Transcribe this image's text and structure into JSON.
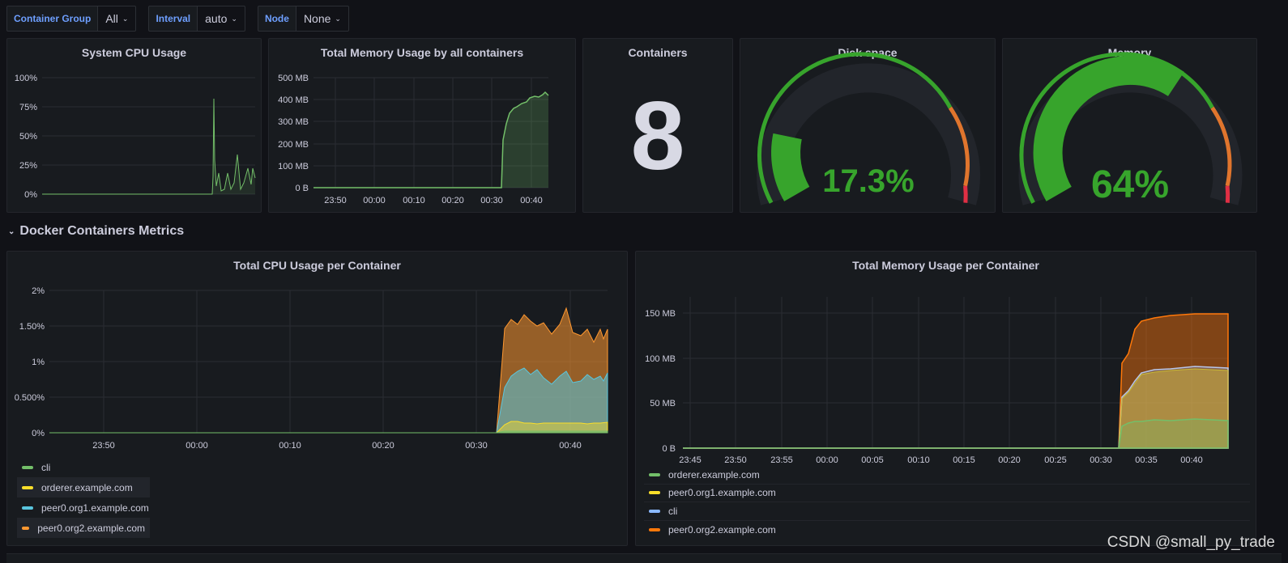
{
  "variables": [
    {
      "label": "Container Group",
      "value": "All"
    },
    {
      "label": "Interval",
      "value": "auto"
    },
    {
      "label": "Node",
      "value": "None"
    }
  ],
  "panels": {
    "cpu": {
      "title": "System CPU Usage",
      "y_ticks": [
        "100%",
        "75%",
        "50%",
        "25%",
        "0%"
      ]
    },
    "mem_total": {
      "title": "Total Memory Usage by all containers",
      "y_ticks": [
        "500 MB",
        "400 MB",
        "300 MB",
        "200 MB",
        "100 MB",
        "0 B"
      ],
      "x_ticks": [
        "23:50",
        "00:00",
        "00:10",
        "00:20",
        "00:30",
        "00:40"
      ]
    },
    "containers": {
      "title": "Containers",
      "value": "8"
    },
    "disk": {
      "title": "Disk space",
      "value": "17.3%",
      "fraction": 0.173
    },
    "memory": {
      "title": "Memory",
      "value": "64%",
      "fraction": 0.64
    }
  },
  "row": {
    "title": "Docker Containers Metrics"
  },
  "cpu_per_container": {
    "title": "Total CPU Usage per Container",
    "y_ticks": [
      "2%",
      "1.50%",
      "1%",
      "0.500%",
      "0%"
    ],
    "x_ticks": [
      "23:50",
      "00:00",
      "00:10",
      "00:20",
      "00:30",
      "00:40"
    ],
    "legend": [
      {
        "name": "cli",
        "color": "#73bf69"
      },
      {
        "name": "orderer.example.com",
        "color": "#fade2a"
      },
      {
        "name": "peer0.org1.example.com",
        "color": "#5ac6de"
      },
      {
        "name": "peer0.org2.example.com",
        "color": "#ff9830"
      }
    ]
  },
  "mem_per_container": {
    "title": "Total Memory Usage per Container",
    "y_ticks": [
      "150 MB",
      "100 MB",
      "50 MB",
      "0 B"
    ],
    "x_ticks": [
      "23:45",
      "23:50",
      "23:55",
      "00:00",
      "00:05",
      "00:10",
      "00:15",
      "00:20",
      "00:25",
      "00:30",
      "00:35",
      "00:40"
    ],
    "legend": [
      {
        "name": "orderer.example.com",
        "color": "#73bf69"
      },
      {
        "name": "peer0.org1.example.com",
        "color": "#fade2a"
      },
      {
        "name": "cli",
        "color": "#8ab8ff"
      },
      {
        "name": "peer0.org2.example.com",
        "color": "#ff780a"
      }
    ]
  },
  "watermark": "CSDN @small_py_trade"
}
